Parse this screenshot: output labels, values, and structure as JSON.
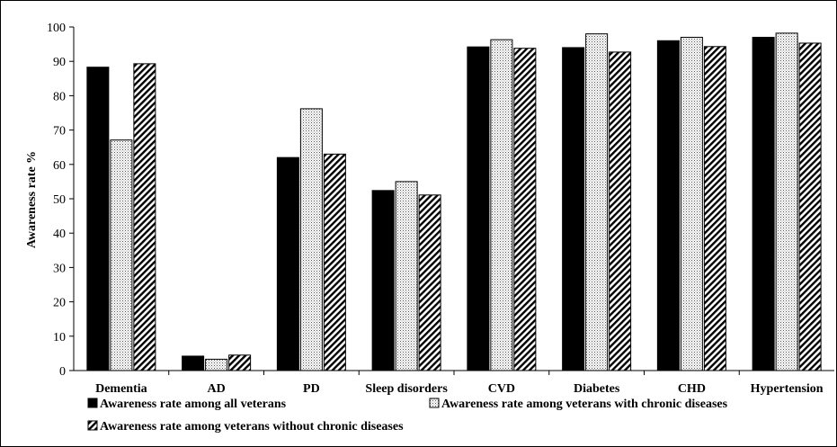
{
  "chart_data": {
    "type": "bar",
    "title": "",
    "xlabel": "",
    "ylabel": "Awareness rate %",
    "ylim": [
      0,
      100
    ],
    "yticks": [
      0,
      10,
      20,
      30,
      40,
      50,
      60,
      70,
      80,
      90,
      100
    ],
    "grid": false,
    "legend_position": "bottom",
    "categories": [
      "Dementia",
      "AD",
      "PD",
      "Sleep disorders",
      "CVD",
      "Diabetes",
      "CHD",
      "Hypertension"
    ],
    "series": [
      {
        "name": "Awareness rate among all veterans",
        "fill": "solid",
        "color": "#000000",
        "values": [
          88.3,
          4.2,
          62.0,
          52.4,
          94.2,
          94.0,
          96.0,
          97.0
        ]
      },
      {
        "name": "Awareness rate among veterans with chronic diseases",
        "fill": "dotted",
        "color": "#000000",
        "values": [
          67.1,
          3.3,
          76.2,
          55.0,
          96.3,
          98.0,
          97.0,
          98.2
        ]
      },
      {
        "name": "Awareness rate among veterans without chronic diseases",
        "fill": "diagonal-hatch",
        "color": "#000000",
        "values": [
          89.3,
          4.5,
          63.0,
          51.1,
          93.8,
          92.7,
          94.3,
          95.3
        ]
      }
    ]
  }
}
